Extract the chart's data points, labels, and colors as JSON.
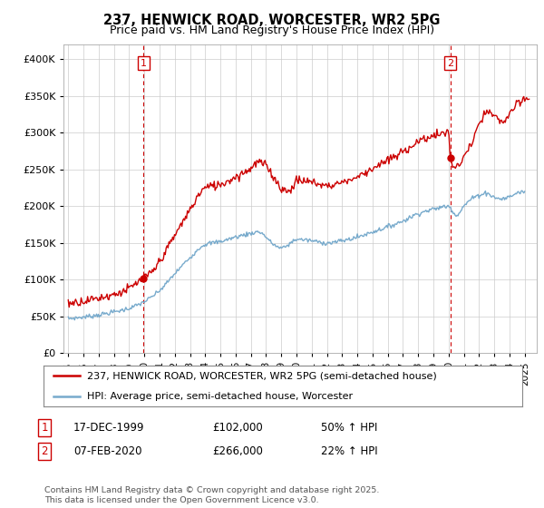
{
  "title": "237, HENWICK ROAD, WORCESTER, WR2 5PG",
  "subtitle": "Price paid vs. HM Land Registry's House Price Index (HPI)",
  "ylim": [
    0,
    420000
  ],
  "xlim_start": 1994.7,
  "xlim_end": 2025.8,
  "sale1_year": 1999.96,
  "sale1_price": 102000,
  "sale1_label": "1",
  "sale2_year": 2020.1,
  "sale2_price": 266000,
  "sale2_label": "2",
  "red_color": "#cc0000",
  "blue_color": "#77aacc",
  "vline_color": "#cc0000",
  "grid_color": "#cccccc",
  "background_color": "#ffffff",
  "legend_entry1": "237, HENWICK ROAD, WORCESTER, WR2 5PG (semi-detached house)",
  "legend_entry2": "HPI: Average price, semi-detached house, Worcester",
  "table_row1": [
    "1",
    "17-DEC-1999",
    "£102,000",
    "50% ↑ HPI"
  ],
  "table_row2": [
    "2",
    "07-FEB-2020",
    "£266,000",
    "22% ↑ HPI"
  ],
  "footnote": "Contains HM Land Registry data © Crown copyright and database right 2025.\nThis data is licensed under the Open Government Licence v3.0.",
  "hpi_segments": [
    [
      1995.0,
      47000
    ],
    [
      1996.0,
      49000
    ],
    [
      1997.0,
      52000
    ],
    [
      1998.0,
      56000
    ],
    [
      1999.0,
      61000
    ],
    [
      2000.0,
      70000
    ],
    [
      2001.0,
      85000
    ],
    [
      2002.0,
      108000
    ],
    [
      2003.0,
      130000
    ],
    [
      2004.0,
      148000
    ],
    [
      2005.0,
      152000
    ],
    [
      2006.0,
      158000
    ],
    [
      2007.0,
      163000
    ],
    [
      2007.5,
      165000
    ],
    [
      2008.5,
      148000
    ],
    [
      2009.0,
      143000
    ],
    [
      2009.5,
      148000
    ],
    [
      2010.0,
      155000
    ],
    [
      2011.0,
      153000
    ],
    [
      2012.0,
      150000
    ],
    [
      2013.0,
      153000
    ],
    [
      2014.0,
      158000
    ],
    [
      2015.0,
      165000
    ],
    [
      2016.0,
      172000
    ],
    [
      2017.0,
      180000
    ],
    [
      2018.0,
      190000
    ],
    [
      2019.0,
      196000
    ],
    [
      2020.0,
      200000
    ],
    [
      2020.5,
      188000
    ],
    [
      2021.0,
      200000
    ],
    [
      2021.5,
      210000
    ],
    [
      2022.0,
      215000
    ],
    [
      2022.5,
      218000
    ],
    [
      2023.0,
      212000
    ],
    [
      2023.5,
      210000
    ],
    [
      2024.0,
      213000
    ],
    [
      2024.5,
      218000
    ],
    [
      2025.0,
      220000
    ]
  ],
  "prop_segments": [
    [
      1995.0,
      68000
    ],
    [
      1996.0,
      71000
    ],
    [
      1997.0,
      75000
    ],
    [
      1998.0,
      80000
    ],
    [
      1999.0,
      88000
    ],
    [
      1999.96,
      102000
    ],
    [
      2000.5,
      110000
    ],
    [
      2001.0,
      125000
    ],
    [
      2002.0,
      160000
    ],
    [
      2003.0,
      195000
    ],
    [
      2004.0,
      225000
    ],
    [
      2005.0,
      230000
    ],
    [
      2006.0,
      240000
    ],
    [
      2007.0,
      252000
    ],
    [
      2007.5,
      260000
    ],
    [
      2008.0,
      255000
    ],
    [
      2008.5,
      240000
    ],
    [
      2009.0,
      225000
    ],
    [
      2009.5,
      220000
    ],
    [
      2010.0,
      235000
    ],
    [
      2011.0,
      233000
    ],
    [
      2012.0,
      228000
    ],
    [
      2013.0,
      233000
    ],
    [
      2014.0,
      240000
    ],
    [
      2015.0,
      252000
    ],
    [
      2016.0,
      262000
    ],
    [
      2017.0,
      274000
    ],
    [
      2018.0,
      288000
    ],
    [
      2019.0,
      296000
    ],
    [
      2020.0,
      300000
    ],
    [
      2020.1,
      266000
    ],
    [
      2020.5,
      252000
    ],
    [
      2021.0,
      268000
    ],
    [
      2021.5,
      285000
    ],
    [
      2022.0,
      310000
    ],
    [
      2022.5,
      328000
    ],
    [
      2023.0,
      322000
    ],
    [
      2023.5,
      315000
    ],
    [
      2024.0,
      325000
    ],
    [
      2024.5,
      338000
    ],
    [
      2025.0,
      345000
    ],
    [
      2025.3,
      348000
    ]
  ]
}
